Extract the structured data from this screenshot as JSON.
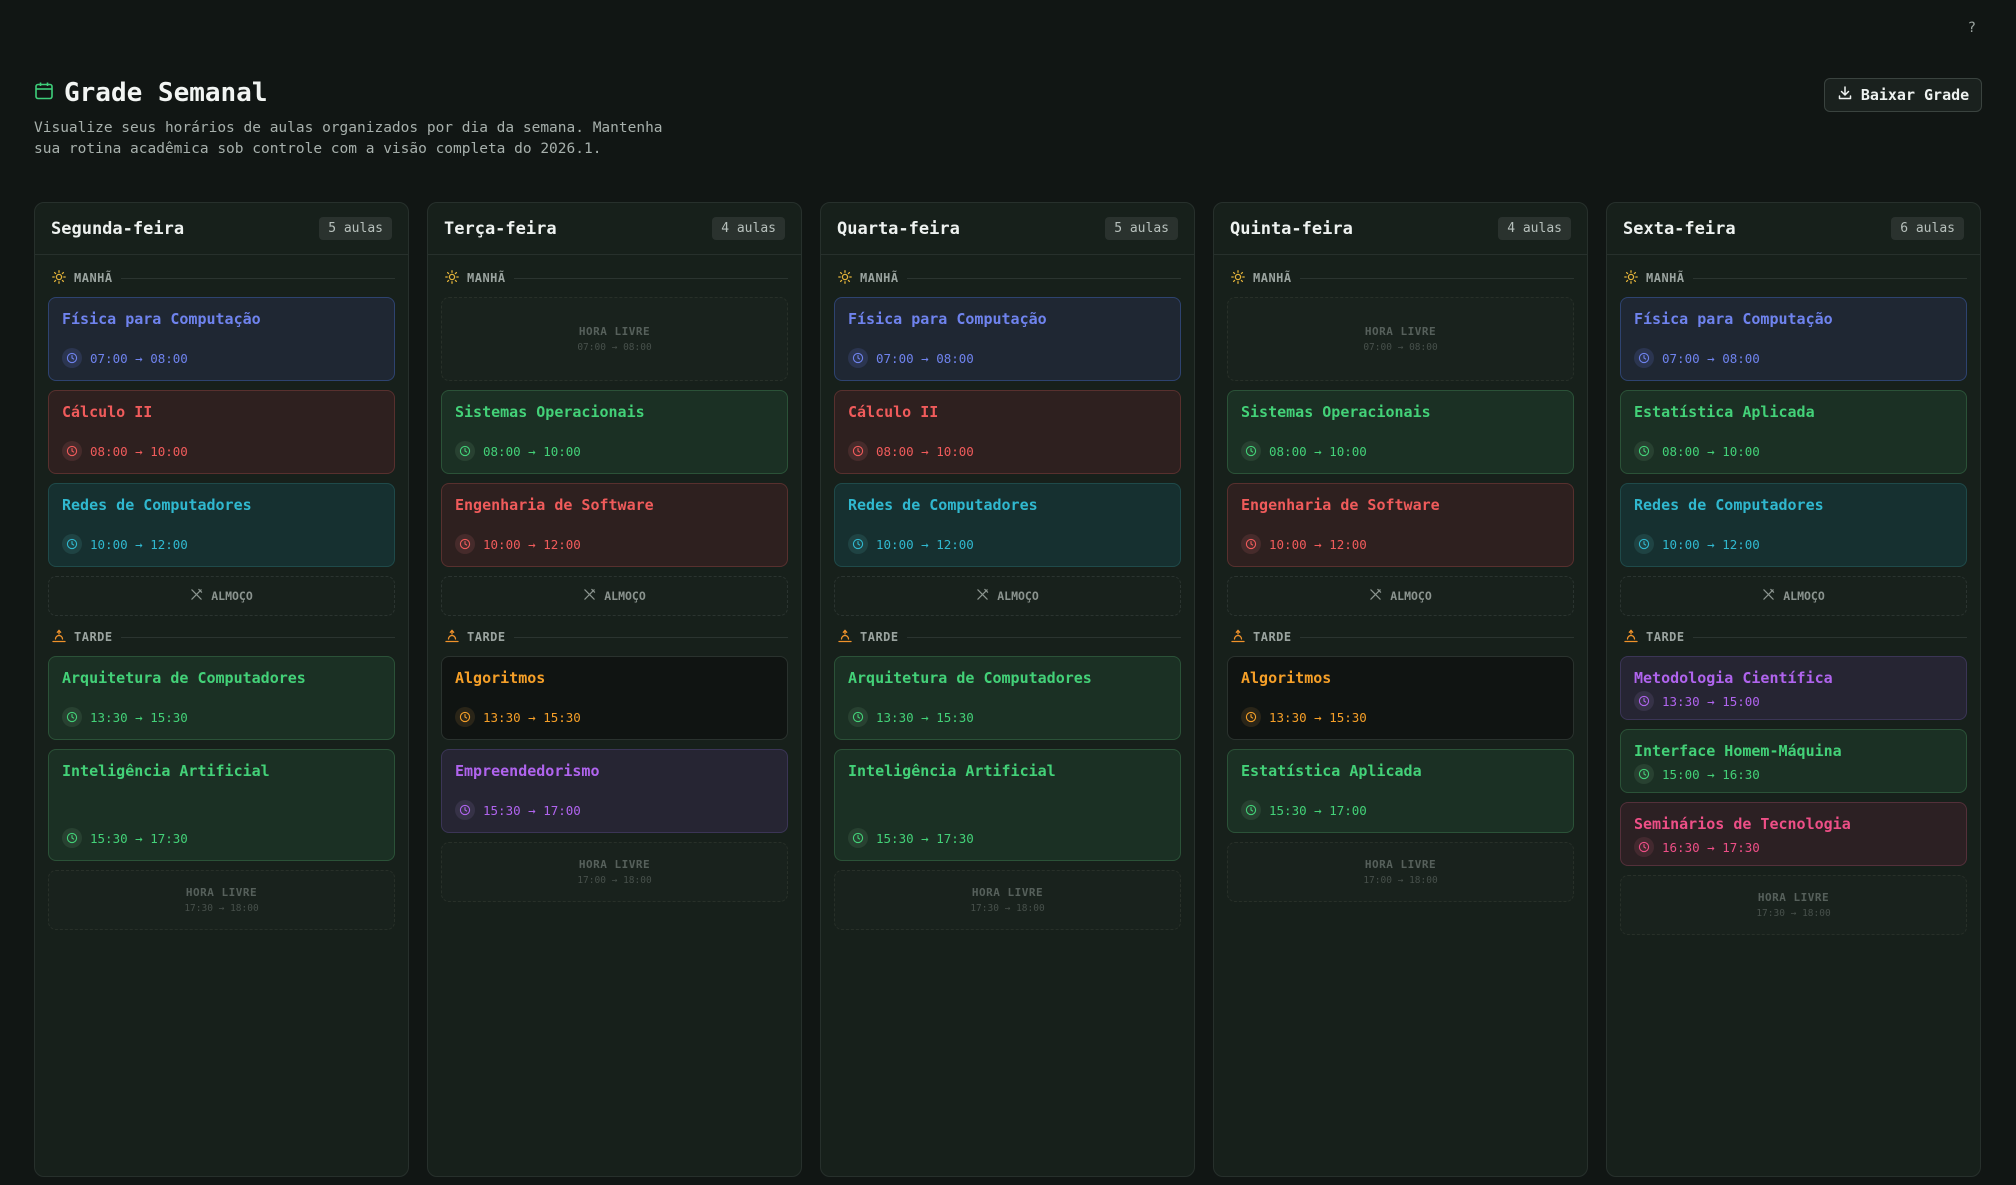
{
  "help_label": "?",
  "header": {
    "title": "Grade Semanal",
    "subtitle": "Visualize seus horários de aulas organizados por dia da semana. Mantenha sua rotina acadêmica sob controle com a visão completa do 2026.1.",
    "download_label": "Baixar Grade"
  },
  "labels": {
    "morning": "MANHÃ",
    "afternoon": "TARDE",
    "lunch": "ALMOÇO",
    "free": "HORA LIVRE"
  },
  "days": [
    {
      "name": "Segunda-feira",
      "badge": "5 aulas",
      "morning": [
        {
          "kind": "class",
          "name": "Física para Computação",
          "time": "07:00 → 08:00",
          "theme": "blue"
        },
        {
          "kind": "class",
          "name": "Cálculo II",
          "time": "08:00 → 10:00",
          "theme": "red"
        },
        {
          "kind": "class",
          "name": "Redes de Computadores",
          "time": "10:00 → 12:00",
          "theme": "cyan"
        }
      ],
      "afternoon": [
        {
          "kind": "class",
          "name": "Arquitetura de Computadores",
          "time": "13:30 → 15:30",
          "theme": "green"
        },
        {
          "kind": "class",
          "name": "Inteligência Artificial",
          "time": "15:30 → 17:30",
          "theme": "green",
          "size": "tall"
        },
        {
          "kind": "free",
          "time": "17:30 → 18:00"
        }
      ]
    },
    {
      "name": "Terça-feira",
      "badge": "4 aulas",
      "morning": [
        {
          "kind": "free",
          "time": "07:00 → 08:00"
        },
        {
          "kind": "class",
          "name": "Sistemas Operacionais",
          "time": "08:00 → 10:00",
          "theme": "green"
        },
        {
          "kind": "class",
          "name": "Engenharia de Software",
          "time": "10:00 → 12:00",
          "theme": "red"
        }
      ],
      "afternoon": [
        {
          "kind": "class",
          "name": "Algoritmos",
          "time": "13:30 → 15:30",
          "theme": "orange"
        },
        {
          "kind": "class",
          "name": "Empreendedorismo",
          "time": "15:30 → 17:00",
          "theme": "purple"
        },
        {
          "kind": "free",
          "time": "17:00 → 18:00"
        }
      ]
    },
    {
      "name": "Quarta-feira",
      "badge": "5 aulas",
      "morning": [
        {
          "kind": "class",
          "name": "Física para Computação",
          "time": "07:00 → 08:00",
          "theme": "blue"
        },
        {
          "kind": "class",
          "name": "Cálculo II",
          "time": "08:00 → 10:00",
          "theme": "red"
        },
        {
          "kind": "class",
          "name": "Redes de Computadores",
          "time": "10:00 → 12:00",
          "theme": "cyan"
        }
      ],
      "afternoon": [
        {
          "kind": "class",
          "name": "Arquitetura de Computadores",
          "time": "13:30 → 15:30",
          "theme": "green"
        },
        {
          "kind": "class",
          "name": "Inteligência Artificial",
          "time": "15:30 → 17:30",
          "theme": "green",
          "size": "tall"
        },
        {
          "kind": "free",
          "time": "17:30 → 18:00"
        }
      ]
    },
    {
      "name": "Quinta-feira",
      "badge": "4 aulas",
      "morning": [
        {
          "kind": "free",
          "time": "07:00 → 08:00"
        },
        {
          "kind": "class",
          "name": "Sistemas Operacionais",
          "time": "08:00 → 10:00",
          "theme": "green"
        },
        {
          "kind": "class",
          "name": "Engenharia de Software",
          "time": "10:00 → 12:00",
          "theme": "red"
        }
      ],
      "afternoon": [
        {
          "kind": "class",
          "name": "Algoritmos",
          "time": "13:30 → 15:30",
          "theme": "orange"
        },
        {
          "kind": "class",
          "name": "Estatística Aplicada",
          "time": "15:30 → 17:00",
          "theme": "green"
        },
        {
          "kind": "free",
          "time": "17:00 → 18:00"
        }
      ]
    },
    {
      "name": "Sexta-feira",
      "badge": "6 aulas",
      "morning": [
        {
          "kind": "class",
          "name": "Física para Computação",
          "time": "07:00 → 08:00",
          "theme": "blue"
        },
        {
          "kind": "class",
          "name": "Estatística Aplicada",
          "time": "08:00 → 10:00",
          "theme": "green"
        },
        {
          "kind": "class",
          "name": "Redes de Computadores",
          "time": "10:00 → 12:00",
          "theme": "cyan"
        }
      ],
      "afternoon": [
        {
          "kind": "class",
          "name": "Metodologia Científica",
          "time": "13:30 → 15:00",
          "theme": "purple",
          "size": "compact"
        },
        {
          "kind": "class",
          "name": "Interface Homem-Máquina",
          "time": "15:00 → 16:30",
          "theme": "green",
          "size": "compact"
        },
        {
          "kind": "class",
          "name": "Seminários de Tecnologia",
          "time": "16:30 → 17:30",
          "theme": "pink",
          "size": "compact"
        },
        {
          "kind": "free",
          "time": "17:30 → 18:00"
        }
      ]
    }
  ]
}
